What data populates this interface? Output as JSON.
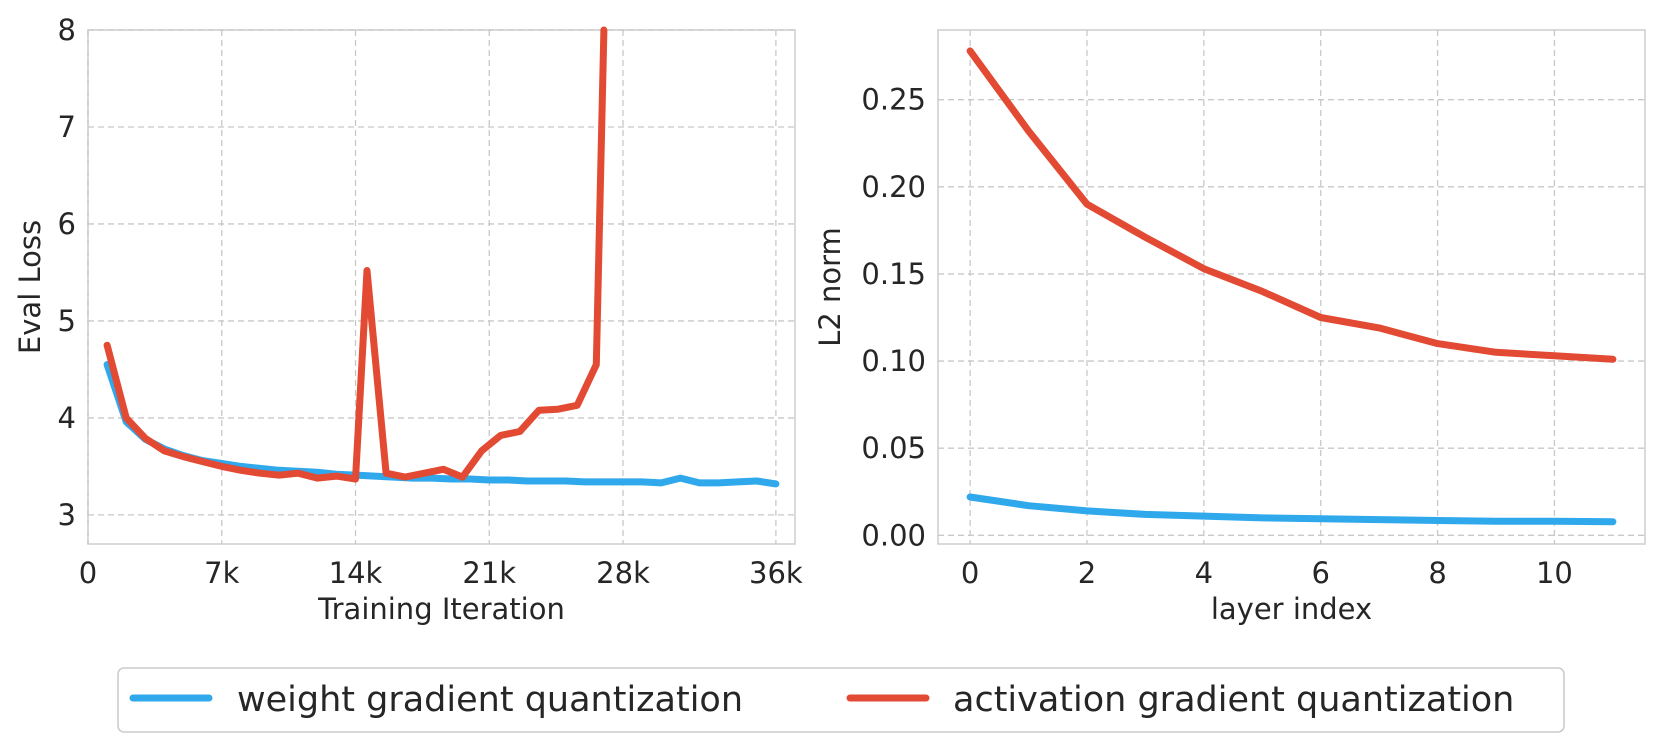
{
  "chart_data": [
    {
      "type": "line",
      "xlabel": "Training Iteration",
      "ylabel": "Eval Loss",
      "xlim": [
        0,
        37000
      ],
      "ylim": [
        2.7,
        8.0
      ],
      "xticks": [
        0,
        7000,
        14000,
        21000,
        28000,
        36000
      ],
      "xtick_labels": [
        "0",
        "7k",
        "14k",
        "21k",
        "28k",
        "36k"
      ],
      "yticks": [
        3,
        4,
        5,
        6,
        7,
        8
      ],
      "ytick_labels": [
        "3",
        "4",
        "5",
        "6",
        "7",
        "8"
      ],
      "grid": true,
      "series": [
        {
          "name": "weight gradient quantization",
          "color": "#2fa8ec",
          "x": [
            1000,
            2000,
            3000,
            4000,
            5000,
            6000,
            7000,
            8000,
            9000,
            10000,
            11000,
            12000,
            13000,
            14000,
            15000,
            16000,
            17000,
            18000,
            19000,
            20000,
            21000,
            22000,
            23000,
            24000,
            25000,
            26000,
            27000,
            28000,
            29000,
            30000,
            31000,
            32000,
            33000,
            34000,
            35000,
            36000
          ],
          "y": [
            4.55,
            3.96,
            3.78,
            3.68,
            3.61,
            3.56,
            3.53,
            3.5,
            3.48,
            3.46,
            3.45,
            3.44,
            3.42,
            3.41,
            3.4,
            3.39,
            3.38,
            3.38,
            3.37,
            3.37,
            3.36,
            3.36,
            3.35,
            3.35,
            3.35,
            3.34,
            3.34,
            3.34,
            3.34,
            3.33,
            3.38,
            3.33,
            3.33,
            3.34,
            3.35,
            3.32
          ]
        },
        {
          "name": "activation gradient quantization",
          "color": "#e24a33",
          "x": [
            1000,
            2000,
            3000,
            4000,
            5000,
            6000,
            7000,
            8000,
            9000,
            10000,
            11000,
            12000,
            13000,
            14000,
            14600,
            15600,
            16600,
            17600,
            18600,
            19600,
            20600,
            21600,
            22600,
            23600,
            24600,
            25600,
            26600,
            27000
          ],
          "y": [
            4.75,
            4.0,
            3.79,
            3.66,
            3.6,
            3.55,
            3.5,
            3.46,
            3.43,
            3.41,
            3.43,
            3.38,
            3.4,
            3.37,
            5.52,
            3.43,
            3.39,
            3.43,
            3.47,
            3.39,
            3.66,
            3.82,
            3.86,
            4.08,
            4.09,
            4.13,
            4.55,
            8.0
          ]
        }
      ]
    },
    {
      "type": "line",
      "xlabel": "layer index",
      "ylabel": "L2 norm",
      "xlim": [
        -0.55,
        11.55
      ],
      "ylim": [
        -0.005,
        0.29
      ],
      "xticks": [
        0,
        2,
        4,
        6,
        8,
        10
      ],
      "xtick_labels": [
        "0",
        "2",
        "4",
        "6",
        "8",
        "10"
      ],
      "yticks": [
        0.0,
        0.05,
        0.1,
        0.15,
        0.2,
        0.25
      ],
      "ytick_labels": [
        "0.00",
        "0.05",
        "0.10",
        "0.15",
        "0.20",
        "0.25"
      ],
      "grid": true,
      "series": [
        {
          "name": "weight gradient quantization",
          "color": "#2fa8ec",
          "x": [
            0,
            1,
            2,
            3,
            4,
            5,
            6,
            7,
            8,
            9,
            10,
            11
          ],
          "y": [
            0.022,
            0.017,
            0.014,
            0.012,
            0.011,
            0.01,
            0.0095,
            0.009,
            0.0085,
            0.008,
            0.008,
            0.0078
          ]
        },
        {
          "name": "activation gradient quantization",
          "color": "#e24a33",
          "x": [
            0,
            1,
            2,
            3,
            4,
            5,
            6,
            7,
            8,
            9,
            10,
            11
          ],
          "y": [
            0.278,
            0.232,
            0.19,
            0.171,
            0.153,
            0.14,
            0.125,
            0.119,
            0.11,
            0.105,
            0.103,
            0.101
          ]
        }
      ]
    }
  ],
  "legend": {
    "position": "bottom-center",
    "entries": [
      {
        "label": "weight gradient quantization",
        "color": "#2fa8ec"
      },
      {
        "label": "activation gradient quantization",
        "color": "#e24a33"
      }
    ]
  }
}
